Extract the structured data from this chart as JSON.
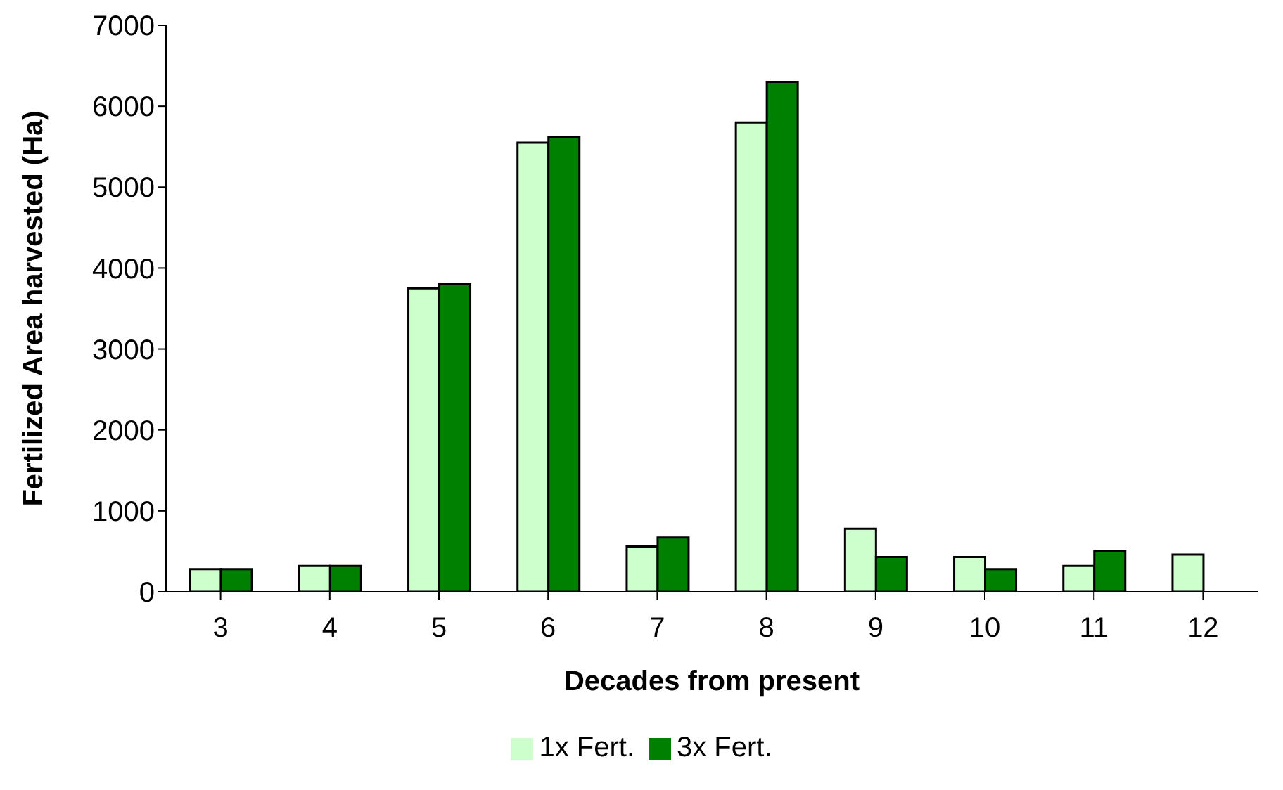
{
  "chart_data": {
    "type": "bar",
    "xlabel": "Decades from present",
    "ylabel": "Fertilized Area harvested (Ha)",
    "categories": [
      "3",
      "4",
      "5",
      "6",
      "7",
      "8",
      "9",
      "10",
      "11",
      "12"
    ],
    "series": [
      {
        "name": "1x Fert.",
        "color": "#ccffcc",
        "values": [
          280,
          320,
          3750,
          5550,
          560,
          5800,
          780,
          430,
          320,
          460
        ]
      },
      {
        "name": "3x Fert.",
        "color": "#008000",
        "values": [
          280,
          320,
          3800,
          5620,
          670,
          6300,
          430,
          280,
          500,
          null
        ]
      }
    ],
    "ylim": [
      0,
      7000
    ],
    "yticks": [
      0,
      1000,
      2000,
      3000,
      4000,
      5000,
      6000,
      7000
    ],
    "grid": false,
    "legend": "bottom"
  }
}
